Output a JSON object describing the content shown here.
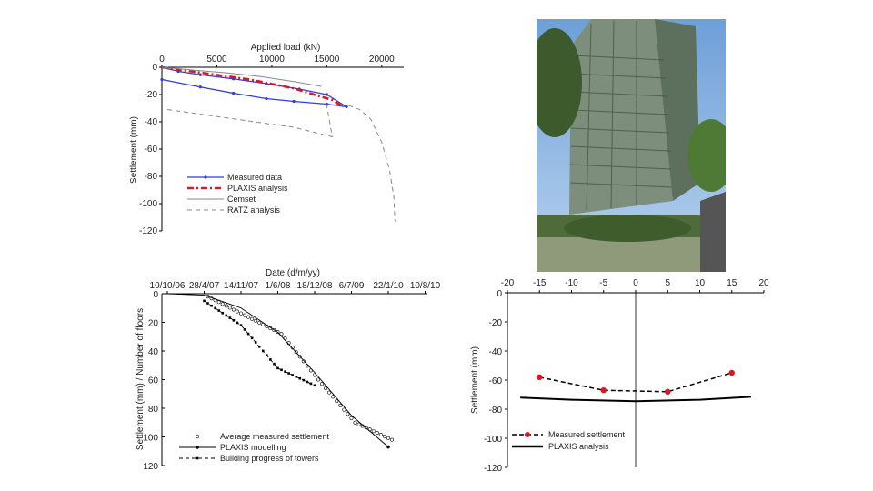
{
  "colors": {
    "blue": "#2f3fd6",
    "red": "#e0161c",
    "grey": "#888888",
    "black": "#000000"
  },
  "chart_data": [
    {
      "type": "line",
      "xlabel": "Applied load (kN)",
      "ylabel": "Settlement (mm)",
      "xlim": [
        0,
        22000
      ],
      "ylim": [
        -120,
        0
      ],
      "x_axis_position": "top",
      "x_ticks": [
        0,
        5000,
        10000,
        15000,
        20000
      ],
      "y_ticks": [
        0,
        -20,
        -40,
        -60,
        -80,
        -100,
        -120
      ],
      "legend_position": "bottom-left",
      "series": [
        {
          "name": "Measured data",
          "style": "solid-marker",
          "color": "#2f3fd6",
          "points": [
            [
              0,
              0
            ],
            [
              1500,
              -3
            ],
            [
              3500,
              -5.5
            ],
            [
              6500,
              -8.5
            ],
            [
              9500,
              -12
            ],
            [
              12500,
              -16
            ],
            [
              15000,
              -20
            ],
            [
              16800,
              -29
            ],
            [
              15000,
              -27
            ],
            [
              12000,
              -25
            ],
            [
              9500,
              -23
            ],
            [
              6500,
              -19
            ],
            [
              3500,
              -14.5
            ],
            [
              0,
              -9
            ]
          ]
        },
        {
          "name": "PLAXIS analysis",
          "style": "dash-dot-thick",
          "color": "#e0161c",
          "points": [
            [
              0,
              0
            ],
            [
              4000,
              -4.5
            ],
            [
              8000,
              -9
            ],
            [
              12000,
              -15.5
            ],
            [
              15500,
              -24
            ],
            [
              16500,
              -29
            ]
          ]
        },
        {
          "name": "Cemset",
          "style": "solid-thin",
          "color": "#888888",
          "points": [
            [
              0,
              0
            ],
            [
              3000,
              -2.2
            ],
            [
              6000,
              -4.2
            ],
            [
              9000,
              -6.8
            ],
            [
              12000,
              -10.5
            ],
            [
              14500,
              -14
            ]
          ]
        },
        {
          "name": "RATZ analysis",
          "style": "dashed",
          "color": "#888888",
          "points": [
            [
              500,
              -31
            ],
            [
              4000,
              -35
            ],
            [
              8000,
              -39.5
            ],
            [
              12000,
              -44
            ],
            [
              15500,
              -51
            ],
            [
              15000,
              -28
            ],
            [
              16000,
              -27.5
            ],
            [
              17000,
              -28
            ],
            [
              18000,
              -31
            ],
            [
              19000,
              -38
            ],
            [
              20000,
              -55
            ],
            [
              20700,
              -75
            ],
            [
              21100,
              -95
            ],
            [
              21200,
              -113
            ]
          ]
        }
      ]
    },
    {
      "type": "scatter",
      "xlabel": "Date (d/m/yy)",
      "ylabel": "Settlement (mm) / Number of floors",
      "x_axis_position": "top",
      "x_ticks": [
        "10/10/06",
        "28/4/07",
        "14/11/07",
        "1/6/08",
        "18/12/08",
        "6/7/09",
        "22/1/10",
        "10/8/10"
      ],
      "y_ticks": [
        0,
        20,
        40,
        60,
        80,
        100,
        120
      ],
      "ylim": [
        0,
        120
      ],
      "y_inverted": true,
      "legend_position": "bottom-left",
      "series": [
        {
          "name": "Average measured settlement",
          "style": "open-circle",
          "points": [
            [
              "28/4/07",
              2
            ],
            [
              "14/11/07",
              15
            ],
            [
              "1/6/08",
              28
            ],
            [
              "18/12/08",
              60
            ],
            [
              "6/7/09",
              90
            ],
            [
              "22/1/10",
              102
            ]
          ]
        },
        {
          "name": "PLAXIS modelling",
          "style": "solid-marker",
          "points": [
            [
              "10/10/06",
              0
            ],
            [
              "28/4/07",
              1
            ],
            [
              "14/11/07",
              10
            ],
            [
              "1/6/08",
              27
            ],
            [
              "18/12/08",
              55
            ],
            [
              "6/7/09",
              85
            ],
            [
              "22/1/10",
              107
            ]
          ]
        },
        {
          "name": "Building progress of towers",
          "style": "dashed-marker",
          "points": [
            [
              "28/4/07",
              5
            ],
            [
              "14/11/07",
              22
            ],
            [
              "1/6/08",
              52
            ],
            [
              "18/12/08",
              64
            ]
          ]
        }
      ]
    },
    {
      "type": "line",
      "xlabel": "",
      "ylabel": "Settlement (mm)",
      "xlim": [
        -20,
        20
      ],
      "ylim": [
        -120,
        0
      ],
      "x_axis_position": "top",
      "x_ticks": [
        -20,
        -15,
        -10,
        -5,
        0,
        5,
        10,
        15,
        20
      ],
      "y_ticks": [
        0,
        -20,
        -40,
        -60,
        -80,
        -100,
        -120
      ],
      "legend_position": "bottom-left",
      "series": [
        {
          "name": "Measured settlement",
          "style": "dashed-red-dots",
          "points": [
            [
              -15,
              -58
            ],
            [
              -5,
              -67
            ],
            [
              5,
              -68
            ],
            [
              15,
              -55
            ]
          ]
        },
        {
          "name": "PLAXIS analysis",
          "style": "solid-thick",
          "points": [
            [
              -18,
              -72
            ],
            [
              -10,
              -73.5
            ],
            [
              0,
              -74.5
            ],
            [
              10,
              -73.5
            ],
            [
              18,
              -71.5
            ]
          ]
        }
      ]
    }
  ]
}
